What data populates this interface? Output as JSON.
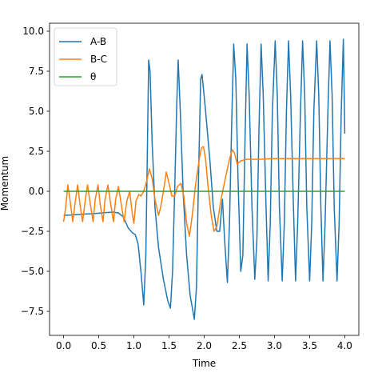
{
  "chart_data": {
    "type": "line",
    "title": "",
    "xlabel": "Time",
    "ylabel": "Momentum",
    "xlim": [
      -0.2,
      4.2
    ],
    "ylim": [
      -9.0,
      10.5
    ],
    "xticks": [
      0.0,
      0.5,
      1.0,
      1.5,
      2.0,
      2.5,
      3.0,
      3.5,
      4.0
    ],
    "xtick_labels": [
      "0.0",
      "0.5",
      "1.0",
      "1.5",
      "2.0",
      "2.5",
      "3.0",
      "3.5",
      "4.0"
    ],
    "yticks": [
      -7.5,
      -5.0,
      -2.5,
      0.0,
      2.5,
      5.0,
      7.5,
      10.0
    ],
    "ytick_labels": [
      "−7.5",
      "−5.0",
      "−2.5",
      "0.0",
      "2.5",
      "5.0",
      "7.5",
      "10.0"
    ],
    "grid": false,
    "legend_position": "top-left",
    "series": [
      {
        "name": "A-B",
        "color": "#1f77b4",
        "points": [
          [
            0.0,
            -1.5
          ],
          [
            0.1,
            -1.48
          ],
          [
            0.2,
            -1.45
          ],
          [
            0.3,
            -1.42
          ],
          [
            0.4,
            -1.4
          ],
          [
            0.5,
            -1.37
          ],
          [
            0.6,
            -1.33
          ],
          [
            0.7,
            -1.3
          ],
          [
            0.78,
            -1.35
          ],
          [
            0.85,
            -1.6
          ],
          [
            0.92,
            -2.3
          ],
          [
            0.98,
            -2.6
          ],
          [
            1.02,
            -2.7
          ],
          [
            1.06,
            -3.3
          ],
          [
            1.1,
            -5.0
          ],
          [
            1.14,
            -7.1
          ],
          [
            1.17,
            -4.0
          ],
          [
            1.19,
            2.0
          ],
          [
            1.21,
            8.2
          ],
          [
            1.23,
            7.5
          ],
          [
            1.26,
            3.0
          ],
          [
            1.3,
            -1.0
          ],
          [
            1.35,
            -3.5
          ],
          [
            1.42,
            -5.5
          ],
          [
            1.48,
            -6.8
          ],
          [
            1.52,
            -7.3
          ],
          [
            1.55,
            -5.0
          ],
          [
            1.58,
            0.0
          ],
          [
            1.61,
            5.5
          ],
          [
            1.63,
            8.2
          ],
          [
            1.66,
            5.0
          ],
          [
            1.7,
            0.0
          ],
          [
            1.75,
            -4.0
          ],
          [
            1.8,
            -6.5
          ],
          [
            1.86,
            -8.0
          ],
          [
            1.89,
            -6.0
          ],
          [
            1.92,
            1.0
          ],
          [
            1.95,
            7.0
          ],
          [
            1.97,
            7.3
          ],
          [
            2.02,
            5.0
          ],
          [
            2.08,
            2.0
          ],
          [
            2.13,
            -1.0
          ],
          [
            2.18,
            -2.5
          ],
          [
            2.22,
            -2.5
          ],
          [
            2.26,
            -0.5
          ],
          [
            2.29,
            -3.0
          ],
          [
            2.33,
            -5.7
          ],
          [
            2.36,
            -2.0
          ],
          [
            2.39,
            4.0
          ],
          [
            2.42,
            9.2
          ],
          [
            2.45,
            7.0
          ],
          [
            2.48,
            1.0
          ],
          [
            2.52,
            -5.0
          ],
          [
            2.55,
            -4.0
          ],
          [
            2.58,
            3.0
          ],
          [
            2.61,
            9.2
          ],
          [
            2.64,
            6.0
          ],
          [
            2.68,
            -1.0
          ],
          [
            2.72,
            -5.5
          ],
          [
            2.75,
            -3.0
          ],
          [
            2.78,
            4.0
          ],
          [
            2.81,
            9.2
          ],
          [
            2.84,
            6.0
          ],
          [
            2.88,
            -1.0
          ],
          [
            2.91,
            -5.6
          ],
          [
            2.94,
            -2.0
          ],
          [
            2.97,
            5.0
          ],
          [
            3.01,
            9.4
          ],
          [
            3.04,
            6.0
          ],
          [
            3.07,
            -1.0
          ],
          [
            3.11,
            -5.6
          ],
          [
            3.14,
            -2.0
          ],
          [
            3.17,
            5.0
          ],
          [
            3.2,
            9.4
          ],
          [
            3.23,
            6.0
          ],
          [
            3.27,
            -1.0
          ],
          [
            3.3,
            -5.6
          ],
          [
            3.33,
            -2.0
          ],
          [
            3.37,
            5.0
          ],
          [
            3.4,
            9.4
          ],
          [
            3.43,
            6.0
          ],
          [
            3.46,
            -1.0
          ],
          [
            3.5,
            -5.6
          ],
          [
            3.53,
            -2.0
          ],
          [
            3.56,
            5.0
          ],
          [
            3.6,
            9.4
          ],
          [
            3.63,
            6.0
          ],
          [
            3.66,
            -1.0
          ],
          [
            3.69,
            -5.6
          ],
          [
            3.72,
            -2.0
          ],
          [
            3.76,
            5.0
          ],
          [
            3.79,
            9.4
          ],
          [
            3.82,
            6.0
          ],
          [
            3.85,
            -1.0
          ],
          [
            3.89,
            -5.6
          ],
          [
            3.92,
            -2.0
          ],
          [
            3.95,
            5.0
          ],
          [
            3.98,
            9.5
          ],
          [
            4.0,
            3.6
          ]
        ]
      },
      {
        "name": "B-C",
        "color": "#ff7f0e",
        "points": [
          [
            0.0,
            -1.9
          ],
          [
            0.03,
            -1.0
          ],
          [
            0.06,
            0.4
          ],
          [
            0.09,
            -0.5
          ],
          [
            0.13,
            -1.9
          ],
          [
            0.17,
            -0.5
          ],
          [
            0.2,
            0.4
          ],
          [
            0.23,
            -0.7
          ],
          [
            0.27,
            -1.9
          ],
          [
            0.31,
            -0.5
          ],
          [
            0.34,
            0.4
          ],
          [
            0.38,
            -0.8
          ],
          [
            0.42,
            -1.9
          ],
          [
            0.45,
            -0.5
          ],
          [
            0.49,
            0.4
          ],
          [
            0.52,
            -0.8
          ],
          [
            0.56,
            -1.9
          ],
          [
            0.59,
            -0.5
          ],
          [
            0.63,
            0.4
          ],
          [
            0.67,
            -0.8
          ],
          [
            0.71,
            -1.9
          ],
          [
            0.74,
            -0.5
          ],
          [
            0.78,
            0.3
          ],
          [
            0.82,
            -0.8
          ],
          [
            0.86,
            -1.9
          ],
          [
            0.9,
            -0.6
          ],
          [
            0.94,
            0.0
          ],
          [
            0.98,
            -1.5
          ],
          [
            1.0,
            -2.0
          ],
          [
            1.03,
            -0.6
          ],
          [
            1.07,
            -0.2
          ],
          [
            1.1,
            -0.3
          ],
          [
            1.14,
            0.0
          ],
          [
            1.18,
            0.6
          ],
          [
            1.22,
            1.4
          ],
          [
            1.26,
            0.8
          ],
          [
            1.3,
            -0.5
          ],
          [
            1.35,
            -1.5
          ],
          [
            1.38,
            -1.0
          ],
          [
            1.42,
            0.0
          ],
          [
            1.46,
            1.2
          ],
          [
            1.5,
            0.5
          ],
          [
            1.54,
            -0.3
          ],
          [
            1.58,
            -0.3
          ],
          [
            1.62,
            0.3
          ],
          [
            1.67,
            0.5
          ],
          [
            1.71,
            -0.3
          ],
          [
            1.75,
            -2.0
          ],
          [
            1.79,
            -2.8
          ],
          [
            1.83,
            -1.5
          ],
          [
            1.88,
            0.5
          ],
          [
            1.93,
            2.0
          ],
          [
            1.96,
            2.7
          ],
          [
            1.99,
            2.8
          ],
          [
            2.02,
            2.0
          ],
          [
            2.05,
            0.5
          ],
          [
            2.1,
            -1.5
          ],
          [
            2.14,
            -2.5
          ],
          [
            2.18,
            -2.2
          ],
          [
            2.24,
            -0.5
          ],
          [
            2.3,
            0.8
          ],
          [
            2.36,
            2.0
          ],
          [
            2.4,
            2.6
          ],
          [
            2.43,
            2.4
          ],
          [
            2.47,
            1.7
          ],
          [
            2.52,
            1.9
          ],
          [
            2.6,
            2.0
          ],
          [
            2.7,
            2.0
          ],
          [
            2.8,
            2.0
          ],
          [
            3.0,
            2.05
          ],
          [
            3.5,
            2.05
          ],
          [
            4.0,
            2.05
          ]
        ]
      },
      {
        "name": "θ",
        "color": "#2ca02c",
        "points": [
          [
            0.0,
            0.0
          ],
          [
            4.0,
            0.0
          ]
        ]
      }
    ]
  }
}
